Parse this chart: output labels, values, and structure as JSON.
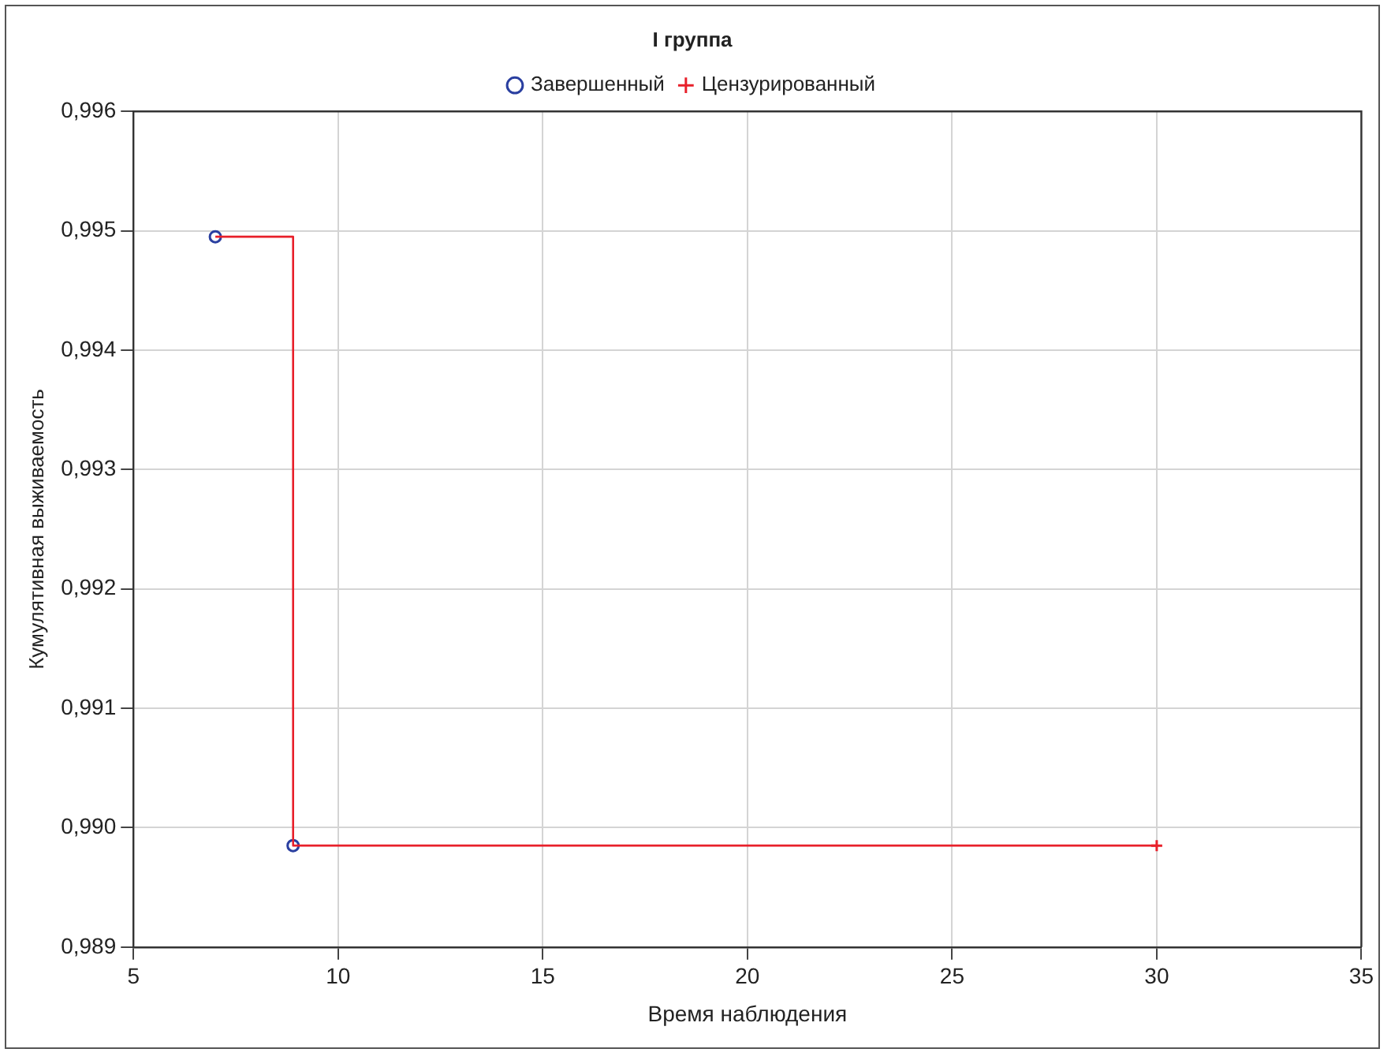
{
  "chart_data": {
    "type": "step",
    "title": "I группа",
    "xlabel": "Время наблюдения",
    "ylabel": "Кумулятивная выживаемость",
    "xlim": [
      5,
      35
    ],
    "xticks": [
      5,
      10,
      15,
      20,
      25,
      30,
      35
    ],
    "ylim": [
      0.989,
      0.996
    ],
    "yticks": [
      {
        "value": 0.989,
        "label": "0,989"
      },
      {
        "value": 0.99,
        "label": "0,990"
      },
      {
        "value": 0.991,
        "label": "0,991"
      },
      {
        "value": 0.992,
        "label": "0,992"
      },
      {
        "value": 0.993,
        "label": "0,993"
      },
      {
        "value": 0.994,
        "label": "0,994"
      },
      {
        "value": 0.995,
        "label": "0,995"
      },
      {
        "value": 0.996,
        "label": "0,996"
      }
    ],
    "grid": true,
    "legend": "top",
    "series": [
      {
        "color": "#e8202a",
        "x": [
          7,
          8.9,
          30
        ],
        "values": [
          0.99495,
          0.98985,
          0.98985
        ],
        "marker": "none"
      },
      {
        "type": "scatter",
        "name": "Завершенный",
        "color": "#2a3fa0",
        "x": [
          7,
          8.9
        ],
        "values": [
          0.99495,
          0.98985
        ],
        "marker": "circle"
      },
      {
        "type": "scatter",
        "name": "Цензурированный",
        "color": "#e8202a",
        "x": [
          30
        ],
        "values": [
          0.98985
        ],
        "marker": "cross"
      }
    ]
  }
}
